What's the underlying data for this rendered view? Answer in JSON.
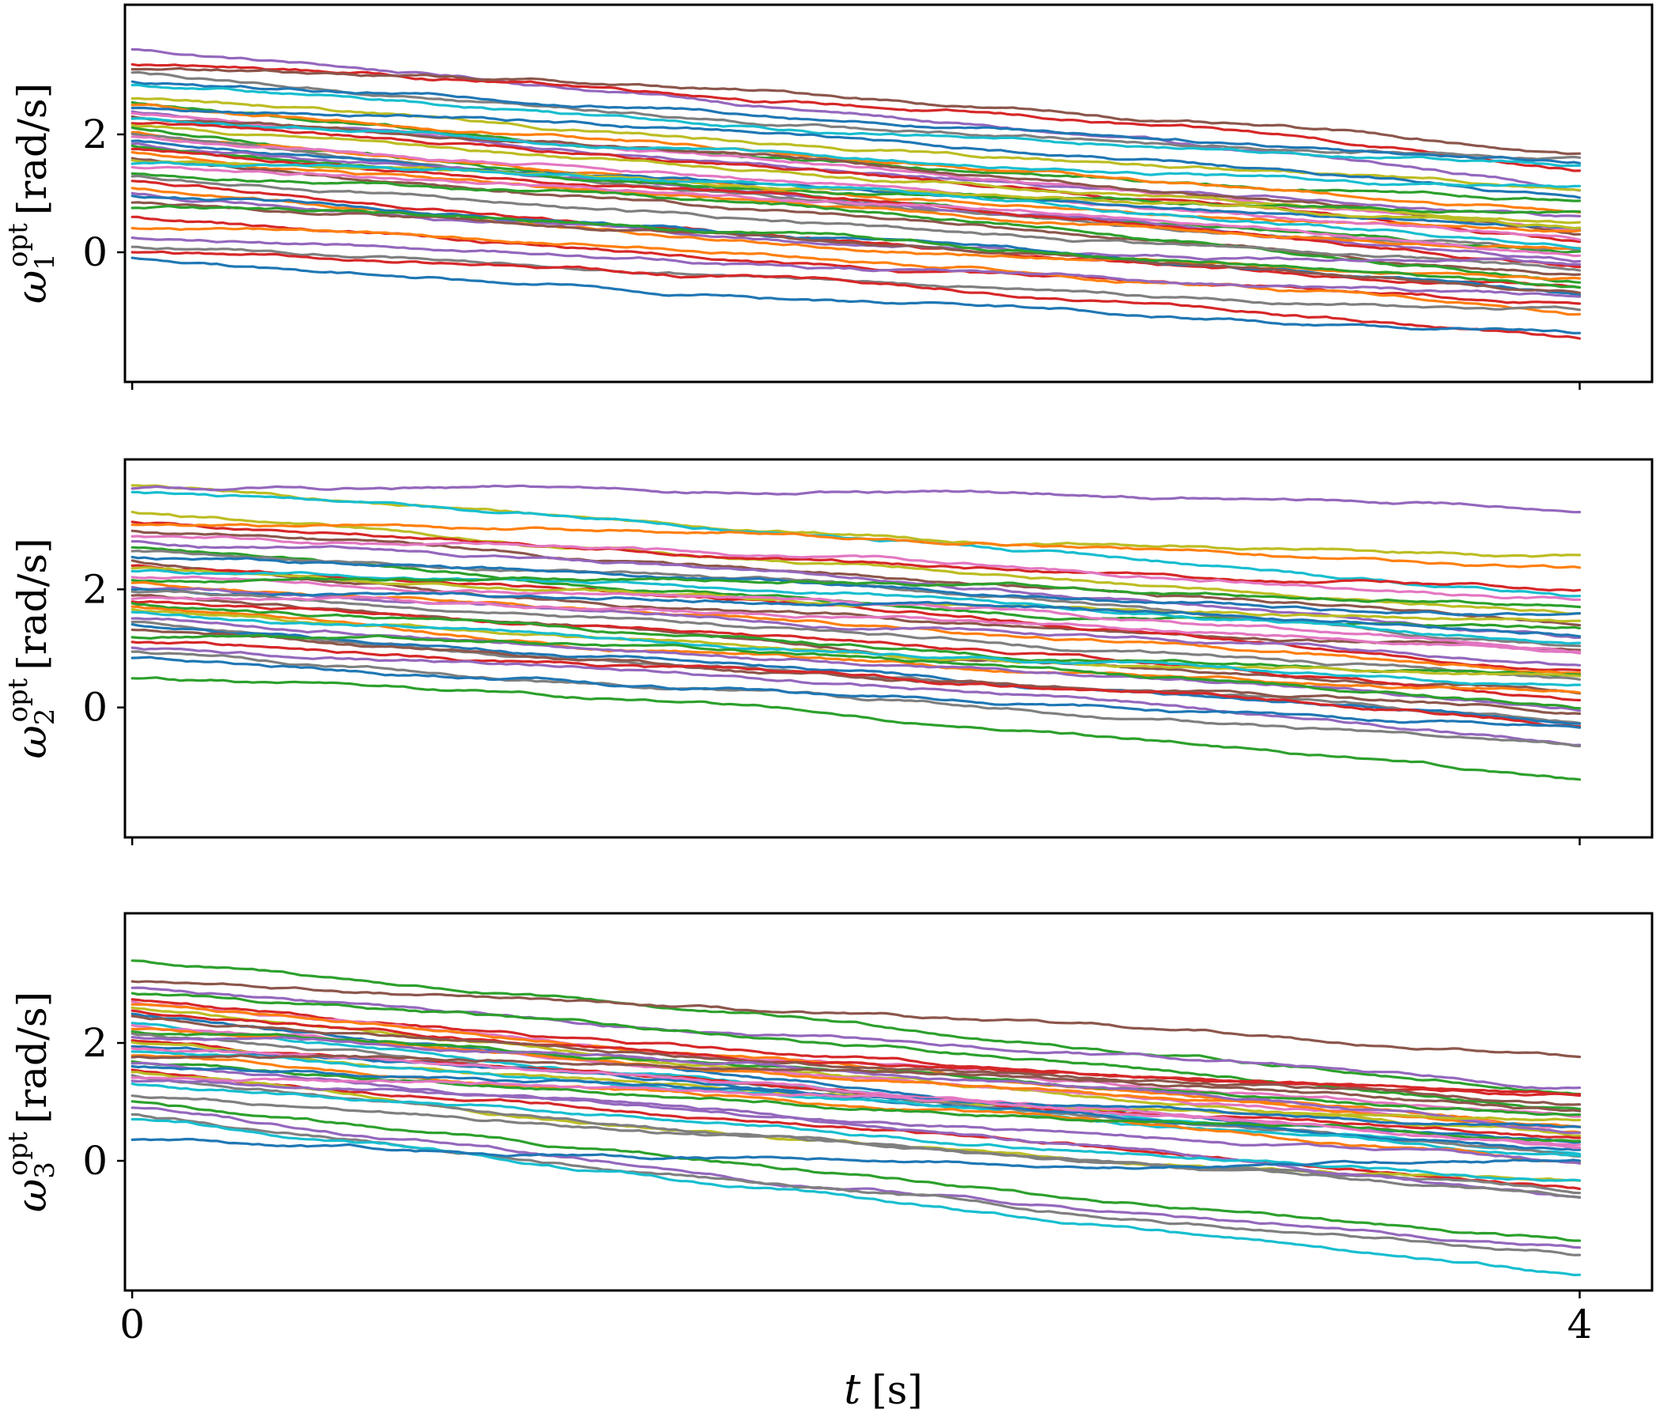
{
  "chart_data": [
    {
      "type": "line",
      "panel": "omega1",
      "ylabel": {
        "symbol": "ω",
        "subscript": "1",
        "superscript": "opt",
        "unit": "[rad/s]"
      },
      "xlabel": "",
      "xlim": [
        -0.02,
        4.2
      ],
      "ylim": [
        -2.2,
        4.2
      ],
      "yticks": [
        {
          "value": 0,
          "label": "0"
        },
        {
          "value": 2,
          "label": "2"
        }
      ],
      "xticks": [
        {
          "value": 0,
          "label": ""
        },
        {
          "value": 4,
          "label": ""
        }
      ],
      "x": [
        0,
        4
      ],
      "series": [
        {
          "color": "#9467bd",
          "values": [
            3.45,
            1.05
          ]
        },
        {
          "color": "#d62728",
          "values": [
            3.2,
            1.45
          ]
        },
        {
          "color": "#8c564b",
          "values": [
            3.1,
            1.65
          ]
        },
        {
          "color": "#7f7f7f",
          "values": [
            3.05,
            1.65
          ]
        },
        {
          "color": "#1f77b4",
          "values": [
            2.9,
            1.6
          ]
        },
        {
          "color": "#17becf",
          "values": [
            2.85,
            1.5
          ]
        },
        {
          "color": "#bcbd22",
          "values": [
            2.6,
            1.1
          ]
        },
        {
          "color": "#2ca02c",
          "values": [
            2.55,
            0.85
          ]
        },
        {
          "color": "#ff7f0e",
          "values": [
            2.5,
            0.7
          ]
        },
        {
          "color": "#1f77b4",
          "values": [
            2.45,
            0.95
          ]
        },
        {
          "color": "#9467bd",
          "values": [
            2.4,
            0.6
          ]
        },
        {
          "color": "#e377c2",
          "values": [
            2.35,
            0.45
          ]
        },
        {
          "color": "#8c564b",
          "values": [
            2.3,
            0.3
          ]
        },
        {
          "color": "#17becf",
          "values": [
            2.25,
            1.05
          ]
        },
        {
          "color": "#d62728",
          "values": [
            2.2,
            0.2
          ]
        },
        {
          "color": "#bcbd22",
          "values": [
            2.15,
            0.55
          ]
        },
        {
          "color": "#2ca02c",
          "values": [
            2.1,
            0.1
          ]
        },
        {
          "color": "#ff7f0e",
          "values": [
            2.05,
            0.35
          ]
        },
        {
          "color": "#7f7f7f",
          "values": [
            2.0,
            0.0
          ]
        },
        {
          "color": "#e377c2",
          "values": [
            1.95,
            0.25
          ]
        },
        {
          "color": "#1f77b4",
          "values": [
            1.9,
            0.5
          ]
        },
        {
          "color": "#9467bd",
          "values": [
            1.85,
            -0.1
          ]
        },
        {
          "color": "#2ca02c",
          "values": [
            1.8,
            0.65
          ]
        },
        {
          "color": "#d62728",
          "values": [
            1.75,
            -0.2
          ]
        },
        {
          "color": "#ff7f0e",
          "values": [
            1.7,
            0.15
          ]
        },
        {
          "color": "#8c564b",
          "values": [
            1.6,
            -0.3
          ]
        },
        {
          "color": "#bcbd22",
          "values": [
            1.55,
            0.4
          ]
        },
        {
          "color": "#17becf",
          "values": [
            1.5,
            0.05
          ]
        },
        {
          "color": "#e377c2",
          "values": [
            1.45,
            -0.05
          ]
        },
        {
          "color": "#2ca02c",
          "values": [
            1.35,
            -0.4
          ]
        },
        {
          "color": "#7f7f7f",
          "values": [
            1.3,
            -0.35
          ]
        },
        {
          "color": "#d62728",
          "values": [
            1.2,
            -0.6
          ]
        },
        {
          "color": "#ff7f0e",
          "values": [
            1.1,
            -0.5
          ]
        },
        {
          "color": "#9467bd",
          "values": [
            1.0,
            -0.25
          ]
        },
        {
          "color": "#1f77b4",
          "values": [
            0.95,
            -0.75
          ]
        },
        {
          "color": "#8c564b",
          "values": [
            0.85,
            -0.7
          ]
        },
        {
          "color": "#2ca02c",
          "values": [
            0.75,
            -0.65
          ]
        },
        {
          "color": "#d62728",
          "values": [
            0.6,
            -0.9
          ]
        },
        {
          "color": "#ff7f0e",
          "values": [
            0.4,
            -1.0
          ]
        },
        {
          "color": "#9467bd",
          "values": [
            0.25,
            -0.8
          ]
        },
        {
          "color": "#7f7f7f",
          "values": [
            0.1,
            -0.95
          ]
        },
        {
          "color": "#d62728",
          "values": [
            0.0,
            -1.5
          ]
        },
        {
          "color": "#1f77b4",
          "values": [
            -0.1,
            -1.4
          ]
        }
      ]
    },
    {
      "type": "line",
      "panel": "omega2",
      "ylabel": {
        "symbol": "ω",
        "subscript": "2",
        "superscript": "opt",
        "unit": "[rad/s]"
      },
      "xlabel": "",
      "xlim": [
        -0.02,
        4.2
      ],
      "ylim": [
        -2.2,
        4.2
      ],
      "yticks": [
        {
          "value": 0,
          "label": "0"
        },
        {
          "value": 2,
          "label": "2"
        }
      ],
      "xticks": [
        {
          "value": 0,
          "label": ""
        },
        {
          "value": 4,
          "label": ""
        }
      ],
      "x": [
        0,
        4
      ],
      "series": [
        {
          "color": "#bcbd22",
          "values": [
            3.75,
            2.55
          ]
        },
        {
          "color": "#9467bd",
          "values": [
            3.7,
            3.35
          ]
        },
        {
          "color": "#17becf",
          "values": [
            3.65,
            1.9
          ]
        },
        {
          "color": "#bcbd22",
          "values": [
            3.3,
            1.6
          ]
        },
        {
          "color": "#d62728",
          "values": [
            3.15,
            2.0
          ]
        },
        {
          "color": "#ff7f0e",
          "values": [
            3.1,
            2.3
          ]
        },
        {
          "color": "#8c564b",
          "values": [
            3.0,
            1.5
          ]
        },
        {
          "color": "#e377c2",
          "values": [
            2.9,
            1.8
          ]
        },
        {
          "color": "#9467bd",
          "values": [
            2.8,
            1.2
          ]
        },
        {
          "color": "#2ca02c",
          "values": [
            2.7,
            1.35
          ]
        },
        {
          "color": "#7f7f7f",
          "values": [
            2.65,
            1.05
          ]
        },
        {
          "color": "#1f77b4",
          "values": [
            2.55,
            1.55
          ]
        },
        {
          "color": "#8c564b",
          "values": [
            2.5,
            0.95
          ]
        },
        {
          "color": "#d62728",
          "values": [
            2.4,
            0.65
          ]
        },
        {
          "color": "#bcbd22",
          "values": [
            2.35,
            1.45
          ]
        },
        {
          "color": "#17becf",
          "values": [
            2.3,
            1.15
          ]
        },
        {
          "color": "#e377c2",
          "values": [
            2.2,
            0.85
          ]
        },
        {
          "color": "#2ca02c",
          "values": [
            2.15,
            1.75
          ]
        },
        {
          "color": "#ff7f0e",
          "values": [
            2.1,
            0.55
          ]
        },
        {
          "color": "#9467bd",
          "values": [
            2.05,
            0.75
          ]
        },
        {
          "color": "#1f77b4",
          "values": [
            2.0,
            1.25
          ]
        },
        {
          "color": "#7f7f7f",
          "values": [
            1.95,
            0.45
          ]
        },
        {
          "color": "#8c564b",
          "values": [
            1.9,
            0.3
          ]
        },
        {
          "color": "#e377c2",
          "values": [
            1.85,
            1.0
          ]
        },
        {
          "color": "#d62728",
          "values": [
            1.8,
            0.15
          ]
        },
        {
          "color": "#2ca02c",
          "values": [
            1.75,
            0.5
          ]
        },
        {
          "color": "#ff7f0e",
          "values": [
            1.7,
            0.25
          ]
        },
        {
          "color": "#bcbd22",
          "values": [
            1.65,
            0.6
          ]
        },
        {
          "color": "#17becf",
          "values": [
            1.6,
            0.35
          ]
        },
        {
          "color": "#9467bd",
          "values": [
            1.5,
            0.0
          ]
        },
        {
          "color": "#7f7f7f",
          "values": [
            1.45,
            -0.2
          ]
        },
        {
          "color": "#1f77b4",
          "values": [
            1.4,
            -0.3
          ]
        },
        {
          "color": "#8c564b",
          "values": [
            1.3,
            -0.1
          ]
        },
        {
          "color": "#2ca02c",
          "values": [
            1.2,
            -0.05
          ]
        },
        {
          "color": "#d62728",
          "values": [
            1.1,
            -0.25
          ]
        },
        {
          "color": "#9467bd",
          "values": [
            1.0,
            -0.6
          ]
        },
        {
          "color": "#7f7f7f",
          "values": [
            0.95,
            -0.75
          ]
        },
        {
          "color": "#1f77b4",
          "values": [
            0.85,
            -0.4
          ]
        },
        {
          "color": "#2ca02c",
          "values": [
            0.5,
            -1.2
          ]
        }
      ]
    },
    {
      "type": "line",
      "panel": "omega3",
      "ylabel": {
        "symbol": "ω",
        "subscript": "3",
        "superscript": "opt",
        "unit": "[rad/s]"
      },
      "xlabel": {
        "symbol": "t",
        "unit": "[s]"
      },
      "xlim": [
        -0.02,
        4.2
      ],
      "ylim": [
        -2.2,
        4.2
      ],
      "yticks": [
        {
          "value": 0,
          "label": "0"
        },
        {
          "value": 2,
          "label": "2"
        }
      ],
      "xticks": [
        {
          "value": 0,
          "label": "0"
        },
        {
          "value": 4,
          "label": "4"
        }
      ],
      "x": [
        0,
        4
      ],
      "series": [
        {
          "color": "#2ca02c",
          "values": [
            3.4,
            1.2
          ]
        },
        {
          "color": "#8c564b",
          "values": [
            3.05,
            1.75
          ]
        },
        {
          "color": "#9467bd",
          "values": [
            2.95,
            1.3
          ]
        },
        {
          "color": "#2ca02c",
          "values": [
            2.85,
            0.9
          ]
        },
        {
          "color": "#d62728",
          "values": [
            2.75,
            1.15
          ]
        },
        {
          "color": "#e377c2",
          "values": [
            2.7,
            0.8
          ]
        },
        {
          "color": "#ff7f0e",
          "values": [
            2.65,
            0.55
          ]
        },
        {
          "color": "#bcbd22",
          "values": [
            2.6,
            0.4
          ]
        },
        {
          "color": "#d62728",
          "values": [
            2.55,
            1.05
          ]
        },
        {
          "color": "#1f77b4",
          "values": [
            2.5,
            0.3
          ]
        },
        {
          "color": "#8c564b",
          "values": [
            2.45,
            0.95
          ]
        },
        {
          "color": "#17becf",
          "values": [
            2.35,
            0.2
          ]
        },
        {
          "color": "#e377c2",
          "values": [
            2.3,
            0.6
          ]
        },
        {
          "color": "#ff7f0e",
          "values": [
            2.25,
            0.45
          ]
        },
        {
          "color": "#2ca02c",
          "values": [
            2.2,
            0.7
          ]
        },
        {
          "color": "#7f7f7f",
          "values": [
            2.15,
            0.1
          ]
        },
        {
          "color": "#9467bd",
          "values": [
            2.1,
            0.5
          ]
        },
        {
          "color": "#d62728",
          "values": [
            2.05,
            0.35
          ]
        },
        {
          "color": "#bcbd22",
          "values": [
            2.0,
            0.65
          ]
        },
        {
          "color": "#1f77b4",
          "values": [
            1.95,
            0.15
          ]
        },
        {
          "color": "#e377c2",
          "values": [
            1.9,
            0.25
          ]
        },
        {
          "color": "#17becf",
          "values": [
            1.85,
            0.05
          ]
        },
        {
          "color": "#ff7f0e",
          "values": [
            1.8,
            0.0
          ]
        },
        {
          "color": "#8c564b",
          "values": [
            1.75,
            0.85
          ]
        },
        {
          "color": "#2ca02c",
          "values": [
            1.7,
            0.4
          ]
        },
        {
          "color": "#9467bd",
          "values": [
            1.65,
            -0.1
          ]
        },
        {
          "color": "#1f77b4",
          "values": [
            1.6,
            0.55
          ]
        },
        {
          "color": "#d62728",
          "values": [
            1.55,
            -0.4
          ]
        },
        {
          "color": "#bcbd22",
          "values": [
            1.5,
            -0.45
          ]
        },
        {
          "color": "#7f7f7f",
          "values": [
            1.45,
            -0.55
          ]
        },
        {
          "color": "#e377c2",
          "values": [
            1.4,
            0.3
          ]
        },
        {
          "color": "#9467bd",
          "values": [
            1.35,
            -0.65
          ]
        },
        {
          "color": "#17becf",
          "values": [
            1.3,
            -0.3
          ]
        },
        {
          "color": "#7f7f7f",
          "values": [
            1.1,
            -0.65
          ]
        },
        {
          "color": "#2ca02c",
          "values": [
            1.0,
            -1.35
          ]
        },
        {
          "color": "#9467bd",
          "values": [
            0.9,
            -1.5
          ]
        },
        {
          "color": "#7f7f7f",
          "values": [
            0.8,
            -1.55
          ]
        },
        {
          "color": "#17becf",
          "values": [
            0.7,
            -1.95
          ]
        },
        {
          "color": "#1f77b4",
          "values": [
            0.35,
            0.0
          ]
        }
      ]
    }
  ]
}
